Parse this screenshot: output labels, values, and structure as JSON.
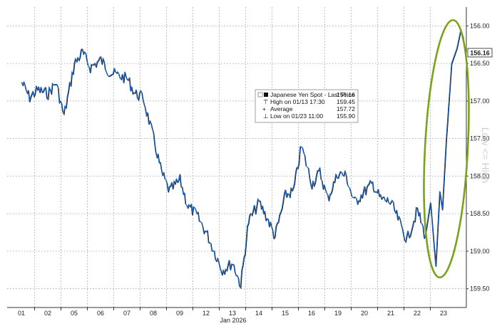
{
  "chart_data": {
    "type": "line",
    "title": "",
    "x_axis": {
      "label": "Jan 2026",
      "tick_labels": [
        "01",
        "02",
        "05",
        "06",
        "07",
        "08",
        "09",
        "12",
        "13",
        "14",
        "15",
        "16",
        "19",
        "20",
        "21",
        "22",
        "23"
      ]
    },
    "y_axis": {
      "label": "Low <= High",
      "inverted": true,
      "range": [
        155.75,
        159.75
      ],
      "tick_labels": [
        "156.00",
        "156.50",
        "157.00",
        "157.50",
        "158.00",
        "158.50",
        "159.00",
        "159.50"
      ]
    },
    "grid": true,
    "legend": {
      "position": "top-center",
      "entries": [
        {
          "label": "Japanese Yen Spot - Last Price",
          "value": "156.16"
        },
        {
          "label": "High on 01/13 17:30",
          "value": "159.45"
        },
        {
          "label": "Average",
          "value": "157.72"
        },
        {
          "label": "Low on 01/23 11:00",
          "value": "155.90"
        }
      ]
    },
    "last_price_label": "156.16",
    "series": [
      {
        "name": "Japanese Yen Spot - Last Price",
        "color": "#1f6fd1",
        "x": [
          0,
          0.3,
          0.6,
          1.0,
          1.3,
          1.6,
          2.0,
          2.3,
          2.6,
          3.0,
          3.3,
          3.6,
          4.0,
          4.3,
          4.6,
          5.0,
          5.3,
          5.6,
          6.0,
          6.3,
          6.6,
          7.0,
          7.3,
          7.6,
          8.0,
          8.3,
          8.6,
          9.0,
          9.3,
          9.6,
          10.0,
          10.3,
          10.6,
          11.0,
          11.3,
          11.6,
          12.0,
          12.3,
          12.6,
          13.0,
          13.3,
          13.6,
          14.0,
          14.3,
          14.6,
          15.0,
          15.3,
          15.5,
          15.7,
          15.85,
          15.95,
          16.1,
          16.3,
          16.5,
          16.65,
          16.75
        ],
        "y": [
          156.75,
          156.95,
          156.85,
          156.9,
          156.75,
          157.2,
          156.5,
          156.35,
          156.55,
          156.45,
          156.6,
          156.65,
          156.7,
          156.9,
          156.95,
          157.5,
          157.95,
          158.2,
          158.05,
          158.4,
          158.5,
          158.75,
          159.0,
          159.25,
          159.15,
          159.45,
          158.6,
          158.35,
          158.55,
          158.8,
          158.25,
          158.2,
          157.6,
          158.1,
          157.95,
          158.3,
          157.95,
          158.0,
          158.35,
          158.2,
          158.1,
          158.3,
          158.35,
          158.6,
          158.85,
          158.45,
          158.8,
          158.35,
          159.2,
          158.2,
          158.45,
          157.5,
          156.5,
          156.3,
          156.05,
          156.16
        ]
      }
    ]
  },
  "annotations": {
    "ellipse_color": "#7aa31a"
  }
}
